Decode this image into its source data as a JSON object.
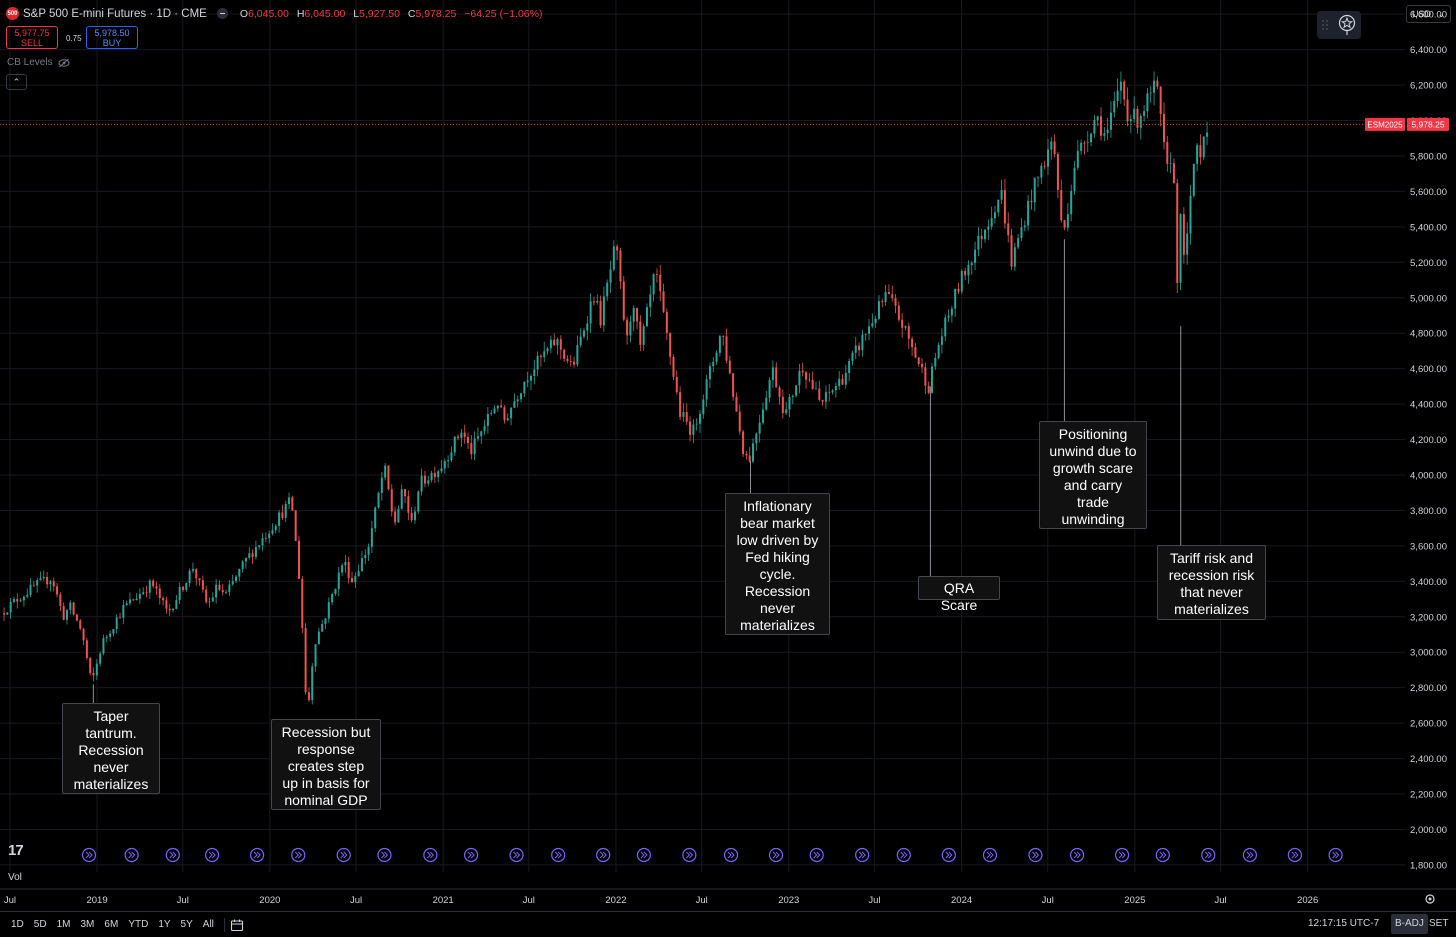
{
  "header": {
    "symbol_badge": "500",
    "title": "S&P 500 E-mini Futures · 1D · CME",
    "ohlc": [
      {
        "key": "O",
        "value": "6,045.00"
      },
      {
        "key": "H",
        "value": "6,045.00"
      },
      {
        "key": "L",
        "value": "5,927.50"
      },
      {
        "key": "C",
        "value": "5,978.25"
      },
      {
        "key": "",
        "value": "−64.25 (−1.06%)"
      }
    ],
    "sell_price": "5,977.75",
    "sell_label": "SELL",
    "spread": "0.75",
    "buy_price": "5,978.50",
    "buy_label": "BUY",
    "indicator_name": "CB Levels",
    "currency": "USD"
  },
  "bottom_bar": {
    "ranges": [
      "1D",
      "5D",
      "1M",
      "3M",
      "6M",
      "YTD",
      "1Y",
      "5Y",
      "All"
    ],
    "clock": "12:17:15 UTC-7",
    "adjust": "B-ADJ",
    "session": "SET"
  },
  "volume_label": "Vol",
  "colors": {
    "up": "#26a69a",
    "down": "#ef5350",
    "price_line": "#f23645",
    "event_marker": "#7b61ff",
    "grid": "#161a20"
  },
  "chart_data": {
    "type": "candlestick",
    "y_axis": {
      "ticks": [
        1800,
        2000,
        2200,
        2400,
        2600,
        2800,
        3000,
        3200,
        3400,
        3600,
        3800,
        4000,
        4200,
        4400,
        4600,
        4800,
        5000,
        5200,
        5400,
        5600,
        5800,
        6000,
        6200,
        6400,
        6600
      ],
      "tick_labels": [
        "1,800.00",
        "2,000.00",
        "2,200.00",
        "2,400.00",
        "2,600.00",
        "2,800.00",
        "3,000.00",
        "3,200.00",
        "3,400.00",
        "3,600.00",
        "3,800.00",
        "4,000.00",
        "4,200.00",
        "4,400.00",
        "4,600.00",
        "4,800.00",
        "5,000.00",
        "5,200.00",
        "5,400.00",
        "5,600.00",
        "5,800.00",
        "6,000.00",
        "6,200.00",
        "6,400.00",
        "6,600.00"
      ],
      "range": [
        1760,
        6680
      ]
    },
    "x_axis": {
      "range": [
        "2018-06-10",
        "2026-07-15"
      ],
      "ticks": [
        {
          "date": "2018-07-01",
          "label": "Jul"
        },
        {
          "date": "2019-01-01",
          "label": "2019"
        },
        {
          "date": "2019-07-01",
          "label": "Jul"
        },
        {
          "date": "2020-01-01",
          "label": "2020"
        },
        {
          "date": "2020-07-01",
          "label": "Jul"
        },
        {
          "date": "2021-01-01",
          "label": "2021"
        },
        {
          "date": "2021-07-01",
          "label": "Jul"
        },
        {
          "date": "2022-01-01",
          "label": "2022"
        },
        {
          "date": "2022-07-01",
          "label": "Jul"
        },
        {
          "date": "2023-01-01",
          "label": "2023"
        },
        {
          "date": "2023-07-01",
          "label": "Jul"
        },
        {
          "date": "2024-01-01",
          "label": "2024"
        },
        {
          "date": "2024-07-01",
          "label": "Jul"
        },
        {
          "date": "2025-01-01",
          "label": "2025"
        },
        {
          "date": "2025-07-01",
          "label": "Jul"
        },
        {
          "date": "2026-01-01",
          "label": "2026"
        }
      ]
    },
    "last_price": {
      "value": 5978.25,
      "label": "5,978.25",
      "contract": "ESM2025"
    },
    "price_path": [
      [
        "2018-06-15",
        3220
      ],
      [
        "2018-07-20",
        3300
      ],
      [
        "2018-08-30",
        3380
      ],
      [
        "2018-10-01",
        3420
      ],
      [
        "2018-10-25",
        3200
      ],
      [
        "2018-11-08",
        3260
      ],
      [
        "2018-12-03",
        3120
      ],
      [
        "2018-12-24",
        2820
      ],
      [
        "2019-01-15",
        3050
      ],
      [
        "2019-03-01",
        3250
      ],
      [
        "2019-04-30",
        3390
      ],
      [
        "2019-06-03",
        3220
      ],
      [
        "2019-07-26",
        3480
      ],
      [
        "2019-08-26",
        3260
      ],
      [
        "2019-09-15",
        3370
      ],
      [
        "2019-10-03",
        3320
      ],
      [
        "2019-11-15",
        3520
      ],
      [
        "2019-12-31",
        3680
      ],
      [
        "2020-01-31",
        3790
      ],
      [
        "2020-02-19",
        3860
      ],
      [
        "2020-03-09",
        3350
      ],
      [
        "2020-03-23",
        2620
      ],
      [
        "2020-04-07",
        3050
      ],
      [
        "2020-04-30",
        3200
      ],
      [
        "2020-06-08",
        3520
      ],
      [
        "2020-06-26",
        3400
      ],
      [
        "2020-07-31",
        3600
      ],
      [
        "2020-09-02",
        4050
      ],
      [
        "2020-09-23",
        3720
      ],
      [
        "2020-10-12",
        3920
      ],
      [
        "2020-10-30",
        3720
      ],
      [
        "2020-11-15",
        3950
      ],
      [
        "2020-12-31",
        4050
      ],
      [
        "2021-02-12",
        4250
      ],
      [
        "2021-03-04",
        4130
      ],
      [
        "2021-04-29",
        4420
      ],
      [
        "2021-05-12",
        4300
      ],
      [
        "2021-06-30",
        4560
      ],
      [
        "2021-08-31",
        4760
      ],
      [
        "2021-10-04",
        4600
      ],
      [
        "2021-11-18",
        5020
      ],
      [
        "2021-12-03",
        4880
      ],
      [
        "2022-01-04",
        5300
      ],
      [
        "2022-01-27",
        4740
      ],
      [
        "2022-02-10",
        5000
      ],
      [
        "2022-02-24",
        4700
      ],
      [
        "2022-03-29",
        5150
      ],
      [
        "2022-05-20",
        4350
      ],
      [
        "2022-06-16",
        4240
      ],
      [
        "2022-08-16",
        4820
      ],
      [
        "2022-09-30",
        4150
      ],
      [
        "2022-10-12",
        4080
      ],
      [
        "2022-12-01",
        4600
      ],
      [
        "2022-12-28",
        4340
      ],
      [
        "2023-02-02",
        4620
      ],
      [
        "2023-03-13",
        4400
      ],
      [
        "2023-05-01",
        4560
      ],
      [
        "2023-06-15",
        4800
      ],
      [
        "2023-07-31",
        5020
      ],
      [
        "2023-09-01",
        4850
      ],
      [
        "2023-10-27",
        4500
      ],
      [
        "2023-11-15",
        4720
      ],
      [
        "2023-12-31",
        5080
      ],
      [
        "2024-03-28",
        5600
      ],
      [
        "2024-04-19",
        5200
      ],
      [
        "2024-05-31",
        5580
      ],
      [
        "2024-07-16",
        5900
      ],
      [
        "2024-08-05",
        5330
      ],
      [
        "2024-08-31",
        5770
      ],
      [
        "2024-10-15",
        6030
      ],
      [
        "2024-11-05",
        5900
      ],
      [
        "2024-12-06",
        6220
      ],
      [
        "2024-12-19",
        6050
      ],
      [
        "2025-01-08",
        6000
      ],
      [
        "2025-02-19",
        6200
      ],
      [
        "2025-03-13",
        5700
      ],
      [
        "2025-03-25",
        5850
      ],
      [
        "2025-04-08",
        4840
      ],
      [
        "2025-04-10",
        5450
      ],
      [
        "2025-04-21",
        5200
      ],
      [
        "2025-05-13",
        5880
      ],
      [
        "2025-05-23",
        5830
      ],
      [
        "2025-06-02",
        5978.25
      ]
    ],
    "event_marker_dates": [
      "2018-12-15",
      "2019-03-15",
      "2019-06-10",
      "2019-09-01",
      "2019-12-05",
      "2020-03-01",
      "2020-06-05",
      "2020-08-30",
      "2020-12-05",
      "2021-03-01",
      "2021-06-05",
      "2021-09-01",
      "2021-12-05",
      "2022-03-01",
      "2022-06-05",
      "2022-09-01",
      "2022-12-05",
      "2023-03-01",
      "2023-06-05",
      "2023-09-01",
      "2023-12-05",
      "2024-03-01",
      "2024-06-05",
      "2024-09-01",
      "2024-12-05",
      "2025-03-01",
      "2025-06-05",
      "2025-09-01",
      "2025-12-05",
      "2026-03-01"
    ],
    "annotations": [
      {
        "anchor_date": "2018-12-24",
        "price": 2820,
        "text": "Taper\ntantrum.\nRecession\nnever\nmaterializes"
      },
      {
        "anchor_date": "2020-03-23",
        "price": 2620,
        "text": "Recession but\nresponse\ncreates step\nup in basis for\nnominal GDP"
      },
      {
        "anchor_date": "2022-10-12",
        "price": 4080,
        "text": "Inflationary\nbear market\nlow driven by\nFed hiking\ncycle.\nRecession\nnever\nmaterializes"
      },
      {
        "anchor_date": "2023-10-27",
        "price": 4500,
        "text": "QRA Scare"
      },
      {
        "anchor_date": "2024-08-05",
        "price": 5330,
        "text": "Positioning\nunwind due to\ngrowth scare\nand carry\ntrade\nunwinding"
      },
      {
        "anchor_date": "2025-04-08",
        "price": 4840,
        "text": "Tariff risk and\nrecession risk\nthat never\nmaterializes"
      }
    ]
  }
}
